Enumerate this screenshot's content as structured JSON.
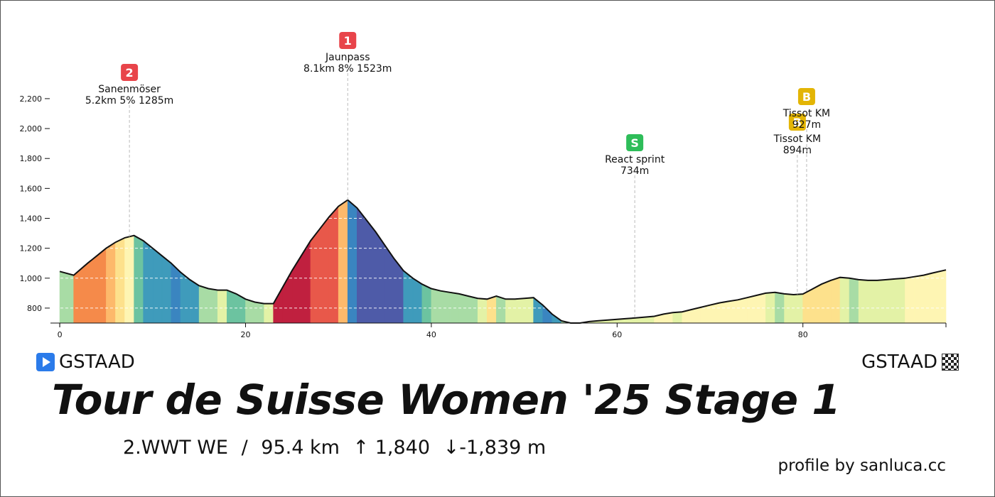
{
  "chart_data": {
    "type": "area",
    "xlabel": "",
    "ylabel": "",
    "xlim": [
      -1,
      95.4
    ],
    "ylim": [
      700,
      2380
    ],
    "x_ticks": [
      0,
      20,
      40,
      60,
      80
    ],
    "y_ticks": [
      800,
      1000,
      1200,
      1400,
      1600,
      1800,
      2000,
      2200
    ],
    "grid": "horizontal dashed",
    "profile": {
      "x": [
        0,
        1.5,
        3,
        4,
        5,
        6,
        7,
        8,
        9,
        10,
        11,
        12,
        13,
        14,
        15,
        16,
        17,
        18,
        19,
        20,
        21,
        22,
        23,
        24,
        25,
        26,
        27,
        28,
        29,
        30,
        31,
        32,
        33,
        34,
        35,
        36,
        37,
        38,
        39,
        40,
        41,
        42,
        43,
        44,
        45,
        46,
        47,
        48,
        49,
        50,
        51,
        52,
        53,
        54,
        55,
        56,
        57,
        58,
        59,
        60,
        61,
        62,
        63,
        64,
        65,
        66,
        67,
        68,
        69,
        70,
        71,
        72,
        73,
        74,
        75,
        76,
        77,
        78,
        79,
        80,
        81,
        82,
        83,
        84,
        85,
        86,
        87,
        88,
        89,
        90,
        91,
        92,
        93,
        94,
        95.4
      ],
      "elevation": [
        1045,
        1020,
        1100,
        1150,
        1200,
        1240,
        1270,
        1285,
        1250,
        1200,
        1150,
        1100,
        1040,
        990,
        950,
        930,
        920,
        920,
        895,
        860,
        840,
        830,
        830,
        940,
        1050,
        1150,
        1250,
        1330,
        1410,
        1480,
        1523,
        1470,
        1390,
        1310,
        1220,
        1130,
        1050,
        1000,
        960,
        930,
        915,
        905,
        895,
        880,
        865,
        860,
        880,
        860,
        860,
        865,
        870,
        820,
        760,
        715,
        700,
        700,
        710,
        715,
        720,
        725,
        730,
        734,
        740,
        745,
        760,
        770,
        775,
        790,
        805,
        820,
        835,
        845,
        855,
        870,
        885,
        900,
        905,
        895,
        890,
        894,
        927,
        960,
        985,
        1005,
        1000,
        990,
        985,
        985,
        990,
        995,
        1000,
        1010,
        1020,
        1035,
        1055
      ]
    },
    "climbs": [
      {
        "badge": "2",
        "name": "Sanenmöser",
        "detail": "5.2km 5% 1285m",
        "x": 7.5,
        "color": "#e8444a"
      },
      {
        "badge": "1",
        "name": "Jaunpass",
        "detail": "8.1km 8% 1523m",
        "x": 31,
        "color": "#e8444a"
      },
      {
        "badge": "S",
        "name": "React sprint",
        "detail": "734m",
        "x": 61.9,
        "color": "#2ebd59"
      },
      {
        "badge": "B",
        "name": "Tissot KM",
        "detail": "894m",
        "x": 79.4,
        "color": "#e3b505"
      },
      {
        "badge": "B",
        "name": "Tissot KM",
        "detail": "927m",
        "x": 80.4,
        "color": "#e3b505"
      }
    ]
  },
  "start_place": "GSTAAD",
  "finish_place": "GSTAAD",
  "title": "Tour de Suisse Women '25 Stage 1",
  "info": {
    "category": "2.WWT WE",
    "separator": "/",
    "distance": "95.4 km",
    "ascent": "↑ 1,840",
    "descent": "↓-1,839 m"
  },
  "credit": "profile by sanluca.cc"
}
